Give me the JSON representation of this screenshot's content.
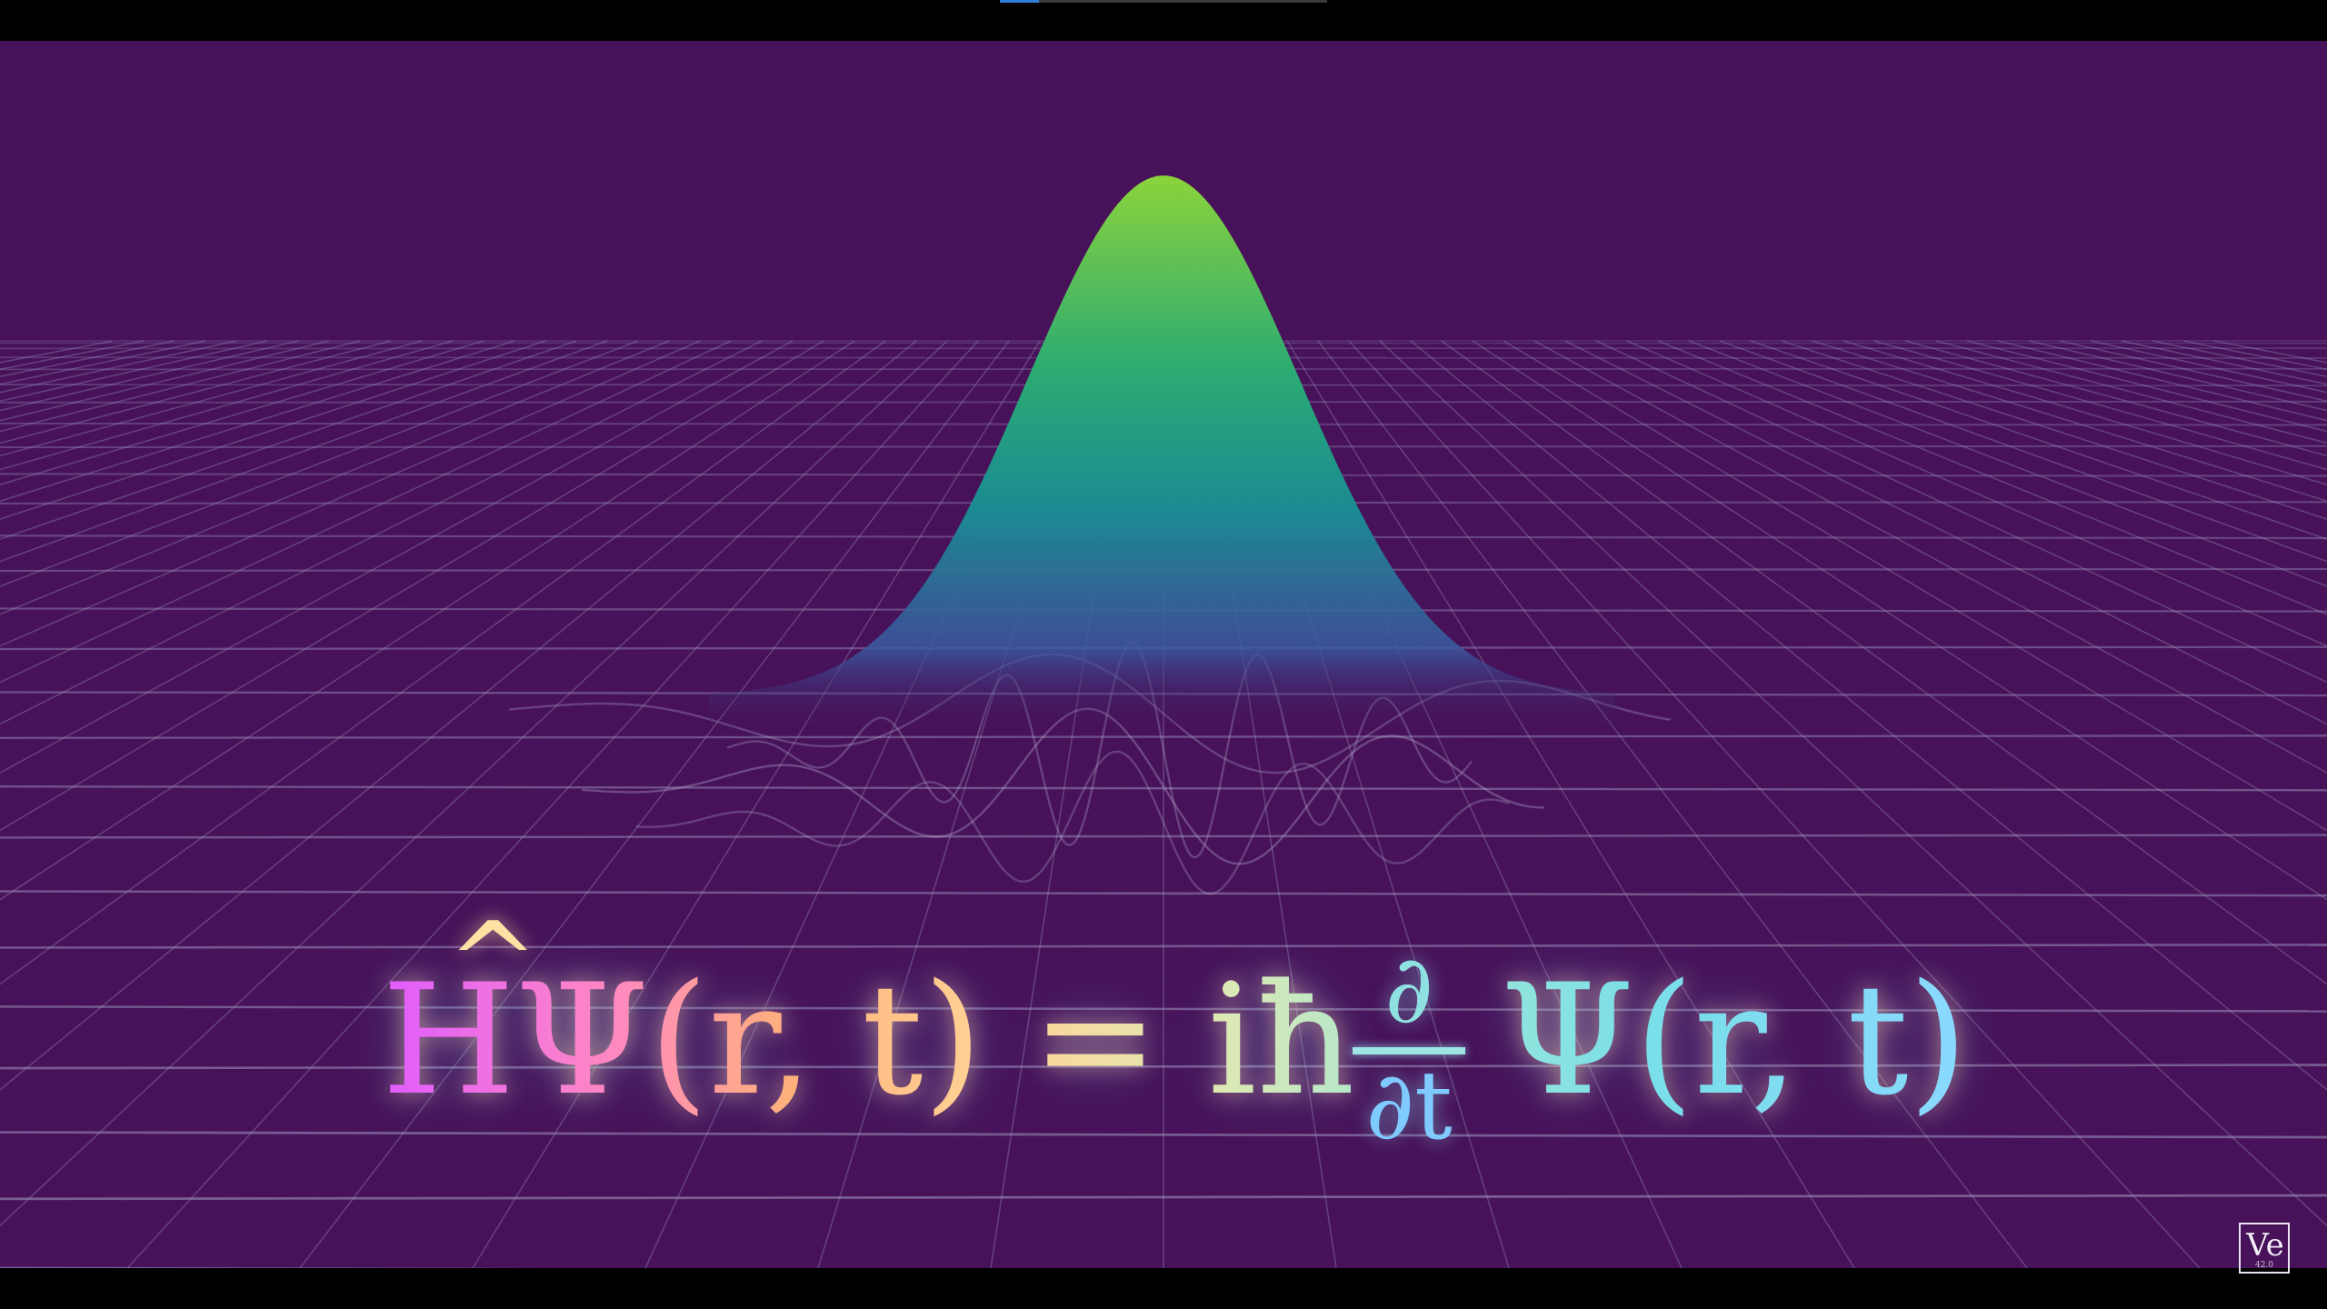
{
  "video": {
    "progress_fraction": 0.12,
    "colors": {
      "background": "#471259",
      "grid_line": "#8f86b0",
      "peak_top": "#8bd33b",
      "peak_mid": "#1e9e8a",
      "peak_base": "#3a5aa0"
    }
  },
  "equation": {
    "hat": "^",
    "left_side": "HΨ(r, t) = iħ",
    "frac_numerator": "∂",
    "frac_denominator": "∂t",
    "right_side": "Ψ(r, t)"
  },
  "logo": {
    "text": "Ve",
    "subtext": "42.0"
  }
}
